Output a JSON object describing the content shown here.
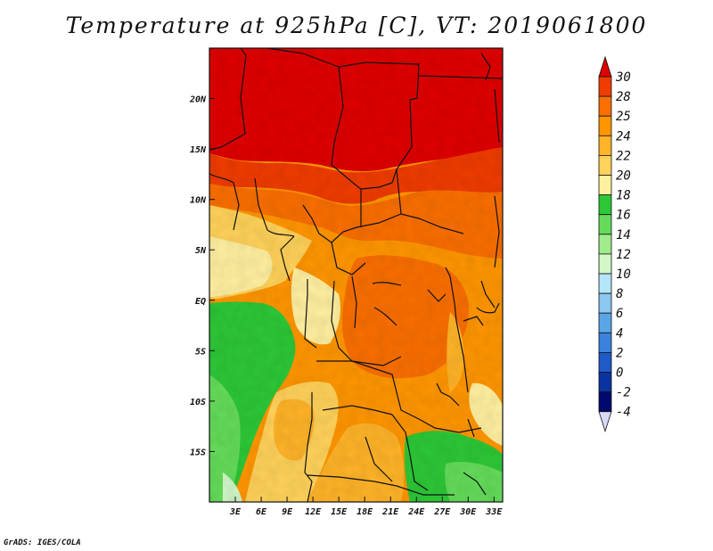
{
  "title": "Temperature at 925hPa [C], VT: 2019061800",
  "credit": "GrADS: IGES/COLA",
  "map": {
    "lon_range": [
      0,
      34
    ],
    "lat_range": [
      -20,
      25
    ],
    "lon_ticks": [
      "3E",
      "6E",
      "9E",
      "12E",
      "15E",
      "18E",
      "21E",
      "24E",
      "27E",
      "30E",
      "33E"
    ],
    "lon_tick_values": [
      3,
      6,
      9,
      12,
      15,
      18,
      21,
      24,
      27,
      30,
      33
    ],
    "lat_ticks": [
      "20N",
      "15N",
      "10N",
      "5N",
      "EQ",
      "5S",
      "10S",
      "15S"
    ],
    "lat_tick_values": [
      20,
      15,
      10,
      5,
      0,
      -5,
      -10,
      -15
    ]
  },
  "colorbar": {
    "labels": [
      "30",
      "28",
      "25",
      "24",
      "22",
      "20",
      "18",
      "16",
      "14",
      "12",
      "10",
      "8",
      "6",
      "4",
      "2",
      "0",
      "-2",
      "-4"
    ],
    "colors": [
      "#e00000",
      "#f03c00",
      "#fa6f00",
      "#ff9600",
      "#ffb428",
      "#ffd25a",
      "#fff0a0",
      "#2dc837",
      "#64dc5a",
      "#a0ec8c",
      "#d2f8c8",
      "#b4e6fa",
      "#8cc8f0",
      "#5aa5e6",
      "#3c82dc",
      "#1e5ac8",
      "#0a32a0",
      "#000a6e"
    ],
    "top_arrow_color": "#e00000",
    "bottom_arrow_color": "#d8d8f8"
  }
}
